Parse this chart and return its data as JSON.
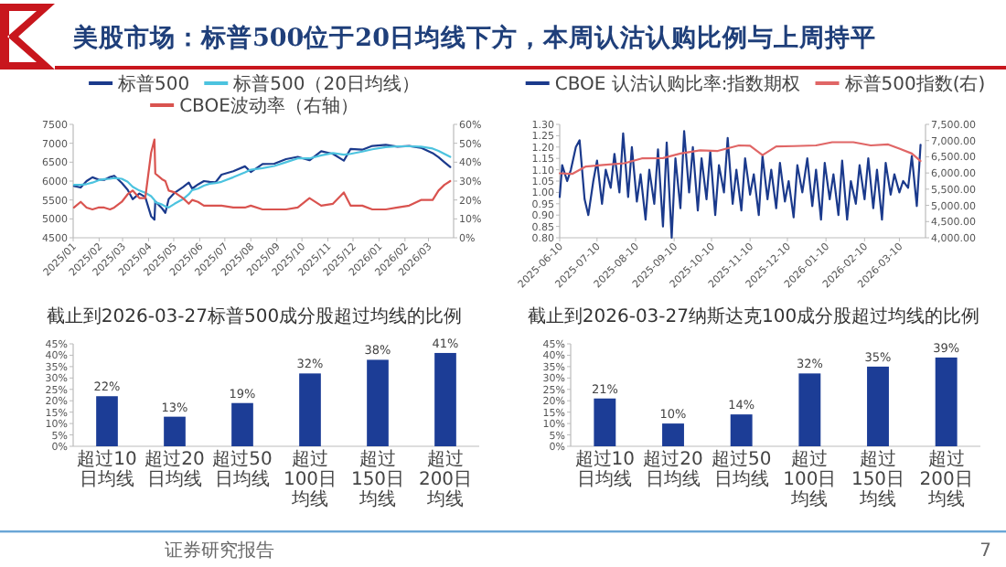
{
  "chart_data": [
    {
      "type": "other",
      "title": "美股市场：标普500位于20日均线下方，本周认沽认购比例与上周持平",
      "annotations": [
        "证券研究报告",
        "7"
      ]
    },
    {
      "type": "line",
      "legend": "top",
      "xlim": [
        "2025-01-01",
        "2026-03-31"
      ],
      "xticks": [
        {
          "value": "2025-01-01",
          "label": "2025/01"
        },
        {
          "value": "2025-02-01",
          "label": "2025/02"
        },
        {
          "value": "2025-03-01",
          "label": "2025/03"
        },
        {
          "value": "2025-04-01",
          "label": "2025/04"
        },
        {
          "value": "2025-05-01",
          "label": "2025/05"
        },
        {
          "value": "2025-06-01",
          "label": "2025/06"
        },
        {
          "value": "2025-07-01",
          "label": "2025/07"
        },
        {
          "value": "2025-08-01",
          "label": "2025/08"
        },
        {
          "value": "2025-09-01",
          "label": "2025/09"
        },
        {
          "value": "2025-10-01",
          "label": "2025/10"
        },
        {
          "value": "2025-11-01",
          "label": "2025/11"
        },
        {
          "value": "2025-12-01",
          "label": "2025/12"
        },
        {
          "value": "2026-01-01",
          "label": "2026/01"
        },
        {
          "value": "2026-02-01",
          "label": "2026/02"
        },
        {
          "value": "2026-03-01",
          "label": "2026/03"
        }
      ],
      "ylim": [
        4500,
        7500
      ],
      "yticks": [
        4500,
        5000,
        5500,
        6000,
        6500,
        7000,
        7500
      ],
      "y2lim": [
        0,
        60
      ],
      "y2ticks": [
        {
          "value": 0,
          "label": "0%"
        },
        {
          "value": 10,
          "label": "10%"
        },
        {
          "value": 20,
          "label": "20%"
        },
        {
          "value": 30,
          "label": "30%"
        },
        {
          "value": 40,
          "label": "40%"
        },
        {
          "value": 50,
          "label": "50%"
        },
        {
          "value": 60,
          "label": "60%"
        }
      ],
      "x": [
        "2025-01-02",
        "2025-01-10",
        "2025-01-17",
        "2025-01-24",
        "2025-01-31",
        "2025-02-07",
        "2025-02-14",
        "2025-02-19",
        "2025-02-28",
        "2025-03-07",
        "2025-03-13",
        "2025-03-21",
        "2025-03-28",
        "2025-04-04",
        "2025-04-08",
        "2025-04-09",
        "2025-04-17",
        "2025-04-21",
        "2025-04-25",
        "2025-05-02",
        "2025-05-12",
        "2025-05-19",
        "2025-05-23",
        "2025-05-30",
        "2025-06-06",
        "2025-06-13",
        "2025-06-20",
        "2025-06-27",
        "2025-07-11",
        "2025-07-25",
        "2025-08-01",
        "2025-08-15",
        "2025-08-29",
        "2025-09-12",
        "2025-09-26",
        "2025-10-10",
        "2025-10-24",
        "2025-11-07",
        "2025-11-20",
        "2025-11-28",
        "2025-12-12",
        "2025-12-24",
        "2026-01-09",
        "2026-01-23",
        "2026-02-06",
        "2026-02-20",
        "2026-03-06",
        "2026-03-13",
        "2026-03-20",
        "2026-03-27"
      ],
      "series": [
        {
          "name": "标普500",
          "color": "#1b3a8c",
          "values": [
            5870,
            5830,
            6000,
            6100,
            6040,
            6030,
            6110,
            6140,
            5950,
            5770,
            5520,
            5670,
            5580,
            5070,
            4980,
            5460,
            5280,
            5160,
            5520,
            5690,
            5840,
            5960,
            5800,
            5910,
            6000,
            5980,
            5970,
            6170,
            6260,
            6390,
            6240,
            6450,
            6460,
            6580,
            6640,
            6550,
            6790,
            6720,
            6540,
            6850,
            6830,
            6930,
            6960,
            6910,
            6930,
            6880,
            6740,
            6630,
            6500,
            6370
          ]
        },
        {
          "name": "标普500（20日均线）",
          "color": "#4cc3df",
          "values": [
            5900,
            5900,
            5920,
            5960,
            6020,
            6050,
            6060,
            6080,
            6060,
            5980,
            5850,
            5750,
            5690,
            5600,
            5500,
            5440,
            5380,
            5330,
            5300,
            5400,
            5520,
            5650,
            5760,
            5800,
            5880,
            5930,
            5950,
            5980,
            6100,
            6230,
            6300,
            6340,
            6400,
            6500,
            6600,
            6600,
            6680,
            6740,
            6700,
            6720,
            6780,
            6840,
            6900,
            6920,
            6920,
            6910,
            6860,
            6800,
            6720,
            6640
          ]
        },
        {
          "name": "CBOE波动率（右轴）",
          "color": "#d9534f",
          "axis": "y2",
          "values": [
            16,
            19,
            16,
            15,
            16,
            16,
            15,
            16,
            19,
            23,
            25,
            21,
            21,
            45,
            52,
            34,
            31,
            30,
            25,
            24,
            21,
            18,
            20,
            19,
            17,
            17,
            17,
            17,
            16,
            16,
            17,
            15,
            15,
            15,
            16,
            21,
            17,
            18,
            24,
            17,
            17,
            15,
            15,
            16,
            17,
            20,
            20,
            25,
            28,
            30
          ]
        }
      ]
    },
    {
      "type": "line",
      "legend": "top",
      "xlim": [
        "2025-06-10",
        "2026-03-31"
      ],
      "xticks": [
        {
          "value": "2025-06-10",
          "label": "2025-06-10"
        },
        {
          "value": "2025-07-10",
          "label": "2025-07-10"
        },
        {
          "value": "2025-08-10",
          "label": "2025-08-10"
        },
        {
          "value": "2025-09-10",
          "label": "2025-09-10"
        },
        {
          "value": "2025-10-10",
          "label": "2025-10-10"
        },
        {
          "value": "2025-11-10",
          "label": "2025-11-10"
        },
        {
          "value": "2025-12-10",
          "label": "2025-12-10"
        },
        {
          "value": "2026-01-10",
          "label": "2026-01-10"
        },
        {
          "value": "2026-02-10",
          "label": "2026-02-10"
        },
        {
          "value": "2026-03-10",
          "label": "2026-03-10"
        }
      ],
      "ylim": [
        0.8,
        1.3
      ],
      "yticks": [
        {
          "value": 0.8,
          "label": "0.80"
        },
        {
          "value": 0.85,
          "label": "0.85"
        },
        {
          "value": 0.9,
          "label": "0.90"
        },
        {
          "value": 0.95,
          "label": "0.95"
        },
        {
          "value": 1.0,
          "label": "1.00"
        },
        {
          "value": 1.05,
          "label": "1.05"
        },
        {
          "value": 1.1,
          "label": "1.10"
        },
        {
          "value": 1.15,
          "label": "1.15"
        },
        {
          "value": 1.2,
          "label": "1.20"
        },
        {
          "value": 1.25,
          "label": "1.25"
        },
        {
          "value": 1.3,
          "label": "1.30"
        }
      ],
      "y2lim": [
        4000,
        7500
      ],
      "y2ticks": [
        {
          "value": 4000,
          "label": "4,000.00"
        },
        {
          "value": 4500,
          "label": "4,500.00"
        },
        {
          "value": 5000,
          "label": "5,000.00"
        },
        {
          "value": 5500,
          "label": "5,500.00"
        },
        {
          "value": 6000,
          "label": "6,000.00"
        },
        {
          "value": 6500,
          "label": "6,500.00"
        },
        {
          "value": 7000,
          "label": "7,000.00"
        },
        {
          "value": 7500,
          "label": "7,500.00"
        }
      ],
      "series": [
        {
          "name": "CBOE 认沽认购比率:指数期权",
          "color": "#1b3a8c",
          "x": [
            "2025-06-10",
            "2025-06-12",
            "2025-06-16",
            "2025-06-19",
            "2025-06-23",
            "2025-06-26",
            "2025-06-30",
            "2025-07-03",
            "2025-07-07",
            "2025-07-10",
            "2025-07-14",
            "2025-07-17",
            "2025-07-21",
            "2025-07-24",
            "2025-07-28",
            "2025-07-31",
            "2025-08-04",
            "2025-08-07",
            "2025-08-11",
            "2025-08-14",
            "2025-08-18",
            "2025-08-21",
            "2025-08-25",
            "2025-08-28",
            "2025-09-01",
            "2025-09-04",
            "2025-09-08",
            "2025-09-11",
            "2025-09-15",
            "2025-09-18",
            "2025-09-22",
            "2025-09-25",
            "2025-09-29",
            "2025-10-02",
            "2025-10-06",
            "2025-10-09",
            "2025-10-13",
            "2025-10-16",
            "2025-10-20",
            "2025-10-23",
            "2025-10-27",
            "2025-10-30",
            "2025-11-03",
            "2025-11-06",
            "2025-11-10",
            "2025-11-13",
            "2025-11-17",
            "2025-11-20",
            "2025-11-24",
            "2025-11-27",
            "2025-12-01",
            "2025-12-04",
            "2025-12-08",
            "2025-12-11",
            "2025-12-15",
            "2025-12-18",
            "2025-12-22",
            "2025-12-26",
            "2025-12-30",
            "2026-01-02",
            "2026-01-06",
            "2026-01-09",
            "2026-01-13",
            "2026-01-16",
            "2026-01-20",
            "2026-01-23",
            "2026-01-27",
            "2026-01-30",
            "2026-02-03",
            "2026-02-06",
            "2026-02-10",
            "2026-02-13",
            "2026-02-17",
            "2026-02-20",
            "2026-02-24",
            "2026-02-27",
            "2026-03-03",
            "2026-03-06",
            "2026-03-10",
            "2026-03-13",
            "2026-03-17",
            "2026-03-20",
            "2026-03-24",
            "2026-03-27"
          ],
          "values": [
            0.98,
            1.12,
            1.05,
            1.1,
            1.2,
            1.23,
            0.97,
            0.9,
            1.05,
            1.14,
            0.95,
            1.1,
            1.02,
            1.17,
            1.0,
            1.26,
            0.98,
            1.2,
            0.96,
            1.08,
            0.88,
            1.1,
            0.95,
            1.19,
            0.85,
            1.22,
            0.8,
            1.15,
            0.93,
            1.27,
            1.0,
            1.2,
            0.92,
            1.15,
            0.97,
            1.18,
            0.9,
            1.12,
            1.0,
            1.24,
            0.95,
            1.1,
            0.92,
            1.15,
            0.99,
            1.08,
            0.9,
            1.16,
            0.97,
            1.1,
            0.93,
            1.13,
            0.96,
            1.05,
            0.89,
            1.12,
            1.0,
            1.15,
            0.94,
            1.1,
            0.88,
            1.13,
            0.97,
            1.08,
            0.9,
            1.14,
            0.88,
            1.05,
            0.95,
            1.12,
            0.97,
            1.15,
            0.93,
            1.1,
            0.88,
            1.13,
            0.99,
            1.08,
            1.0,
            1.05,
            1.02,
            1.16,
            0.94,
            1.21
          ]
        },
        {
          "name": "标普500指数(右)",
          "color": "#e06666",
          "axis": "y2",
          "x": [
            "2025-06-10",
            "2025-06-20",
            "2025-07-01",
            "2025-07-15",
            "2025-08-01",
            "2025-08-15",
            "2025-09-01",
            "2025-09-15",
            "2025-10-01",
            "2025-10-15",
            "2025-11-01",
            "2025-11-10",
            "2025-11-20",
            "2025-12-01",
            "2025-12-15",
            "2026-01-02",
            "2026-01-15",
            "2026-02-01",
            "2026-02-15",
            "2026-03-01",
            "2026-03-10",
            "2026-03-20",
            "2026-03-27"
          ],
          "values": [
            5990,
            5970,
            6200,
            6250,
            6300,
            6450,
            6460,
            6600,
            6700,
            6680,
            6850,
            6840,
            6550,
            6820,
            6830,
            6850,
            6950,
            6950,
            6850,
            6880,
            6750,
            6600,
            6370
          ]
        }
      ]
    },
    {
      "type": "bar",
      "title": "截止到2026-03-27标普500成分股超过均线的比例",
      "color": "#1c3d96",
      "categories": [
        "超过10日均线",
        "超过20日均线",
        "超过50日均线",
        "超过100日均线",
        "超过150日均线",
        "超过200日均线"
      ],
      "values": [
        22,
        13,
        19,
        32,
        38,
        41
      ],
      "value_labels": [
        "22%",
        "13%",
        "19%",
        "32%",
        "38%",
        "41%"
      ],
      "ylim": [
        0,
        45
      ],
      "yticks": [
        {
          "value": 0,
          "label": "0%"
        },
        {
          "value": 5,
          "label": "5%"
        },
        {
          "value": 10,
          "label": "10%"
        },
        {
          "value": 15,
          "label": "15%"
        },
        {
          "value": 20,
          "label": "20%"
        },
        {
          "value": 25,
          "label": "25%"
        },
        {
          "value": 30,
          "label": "30%"
        },
        {
          "value": 35,
          "label": "35%"
        },
        {
          "value": 40,
          "label": "40%"
        },
        {
          "value": 45,
          "label": "45%"
        }
      ]
    },
    {
      "type": "bar",
      "title": "截止到2026-03-27纳斯达克100成分股超过均线的比例",
      "color": "#1c3d96",
      "categories": [
        "超过10日均线",
        "超过20日均线",
        "超过50日均线",
        "超过100日均线",
        "超过150日均线",
        "超过200日均线"
      ],
      "values": [
        21,
        10,
        14,
        32,
        35,
        39
      ],
      "value_labels": [
        "21%",
        "10%",
        "14%",
        "32%",
        "35%",
        "39%"
      ],
      "ylim": [
        0,
        45
      ],
      "yticks": [
        {
          "value": 0,
          "label": "0%"
        },
        {
          "value": 5,
          "label": "5%"
        },
        {
          "value": 10,
          "label": "10%"
        },
        {
          "value": 15,
          "label": "15%"
        },
        {
          "value": 20,
          "label": "20%"
        },
        {
          "value": 25,
          "label": "25%"
        },
        {
          "value": 30,
          "label": "30%"
        },
        {
          "value": 35,
          "label": "35%"
        },
        {
          "value": 40,
          "label": "40%"
        },
        {
          "value": 45,
          "label": "45%"
        }
      ]
    }
  ]
}
